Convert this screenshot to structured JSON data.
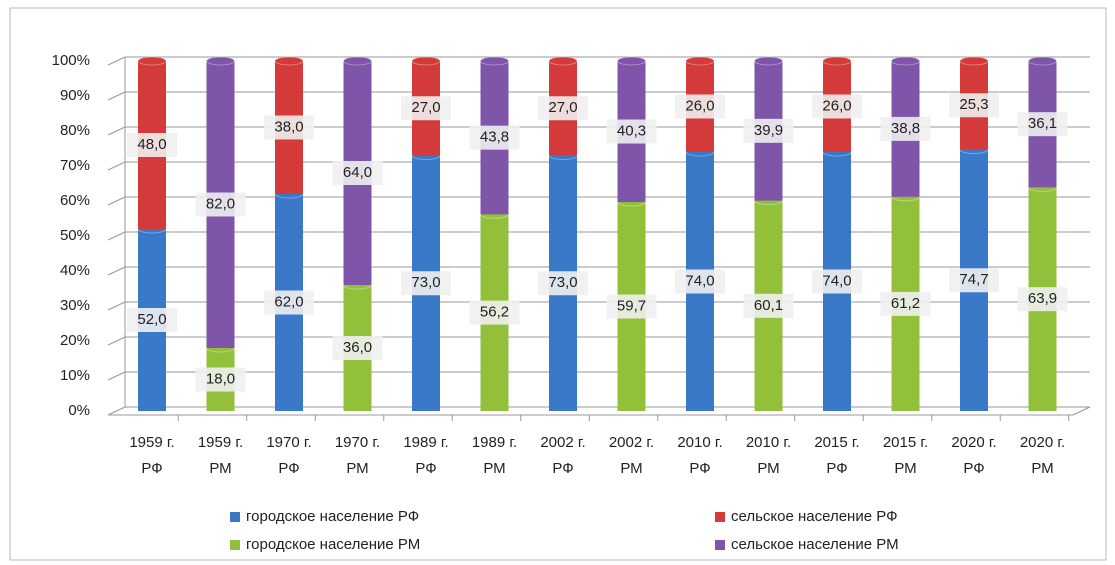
{
  "chart_data": {
    "type": "stacked-bar",
    "categories": [
      "1959 г. РФ",
      "1959 г. РМ",
      "1970 г. РФ",
      "1970 г. РМ",
      "1989 г. РФ",
      "1989 г. РМ",
      "2002 г. РФ",
      "2002 г. РМ",
      "2010 г. РФ",
      "2010 г. РМ",
      "2015 г. РФ",
      "2015 г. РМ",
      "2020 г. РФ",
      "2020 г. РМ"
    ],
    "series": [
      {
        "name": "городское население РФ",
        "color": "#3a78c8",
        "values": [
          52,
          null,
          62,
          null,
          73,
          null,
          73,
          null,
          74,
          null,
          74,
          null,
          74.7,
          null
        ],
        "value_labels": [
          "52,0",
          null,
          "62,0",
          null,
          "73,0",
          null,
          "73,0",
          null,
          "74,0",
          null,
          "74,0",
          null,
          "74,7",
          null
        ]
      },
      {
        "name": "сельское население РФ",
        "color": "#d43a3a",
        "values": [
          48,
          null,
          38,
          null,
          27,
          null,
          27,
          null,
          26,
          null,
          26,
          null,
          25.3,
          null
        ],
        "value_labels": [
          "48,0",
          null,
          "38,0",
          null,
          "27,0",
          null,
          "27,0",
          null,
          "26,0",
          null,
          "26,0",
          null,
          "25,3",
          null
        ]
      },
      {
        "name": "городское население РМ",
        "color": "#92c03a",
        "values": [
          null,
          18,
          null,
          36,
          null,
          56.2,
          null,
          59.7,
          null,
          60.1,
          null,
          61.2,
          null,
          63.9
        ],
        "value_labels": [
          null,
          "18,0",
          null,
          "36,0",
          null,
          "56,2",
          null,
          "59,7",
          null,
          "60,1",
          null,
          "61,2",
          null,
          "63,9"
        ]
      },
      {
        "name": "сельское население РМ",
        "color": "#7e55a8",
        "values": [
          null,
          82,
          null,
          64,
          null,
          43.8,
          null,
          40.3,
          null,
          39.9,
          null,
          38.8,
          null,
          36.1
        ],
        "value_labels": [
          null,
          "82,0",
          null,
          "64,0",
          null,
          "43,8",
          null,
          "40,3",
          null,
          "39,9",
          null,
          "38,8",
          null,
          "36,1"
        ]
      }
    ],
    "ylim": [
      0,
      100
    ],
    "yticks": [
      {
        "value": 0,
        "label": "0%"
      },
      {
        "value": 10,
        "label": "10%"
      },
      {
        "value": 20,
        "label": "20%"
      },
      {
        "value": 30,
        "label": "30%"
      },
      {
        "value": 40,
        "label": "40%"
      },
      {
        "value": 50,
        "label": "50%"
      },
      {
        "value": 60,
        "label": "60%"
      },
      {
        "value": 70,
        "label": "70%"
      },
      {
        "value": 80,
        "label": "80%"
      },
      {
        "value": 90,
        "label": "90%"
      },
      {
        "value": 100,
        "label": "100%"
      }
    ],
    "grid": true
  }
}
